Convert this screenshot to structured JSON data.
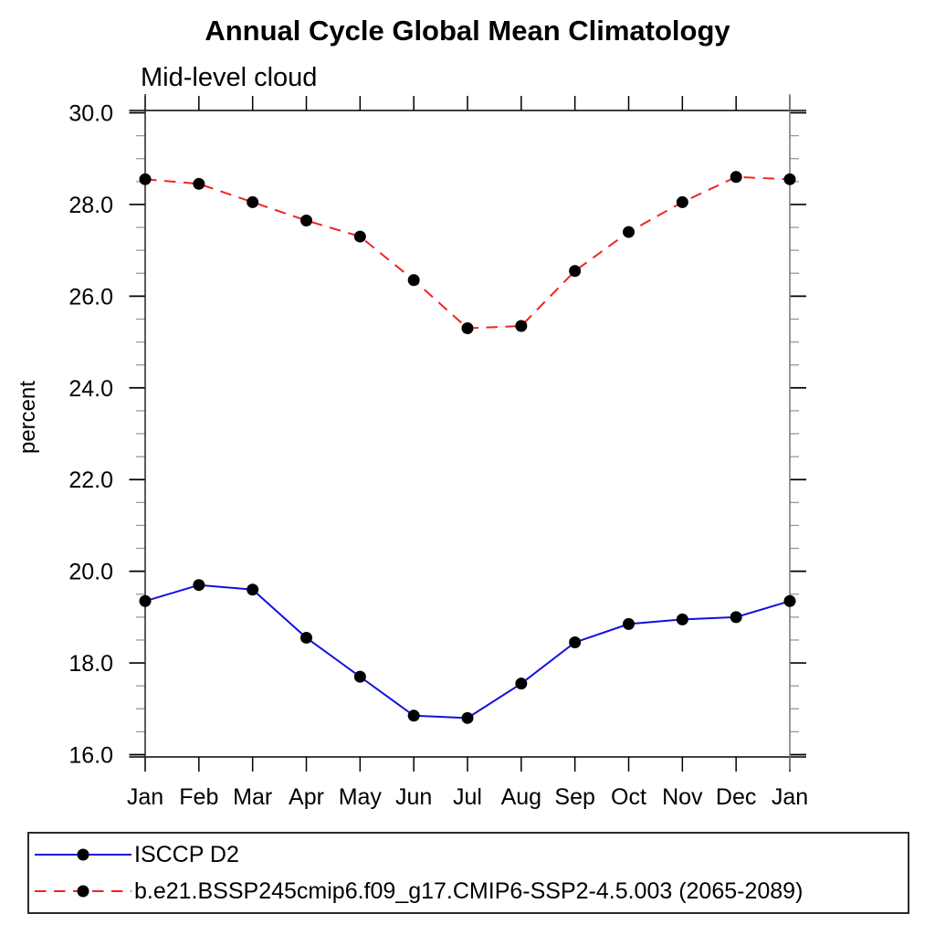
{
  "chart_data": {
    "type": "line",
    "title": "Annual Cycle Global Mean Climatology",
    "subtitle": "Mid-level cloud",
    "xlabel": "",
    "ylabel": "percent",
    "x_categories": [
      "Jan",
      "Feb",
      "Mar",
      "Apr",
      "May",
      "Jun",
      "Jul",
      "Aug",
      "Sep",
      "Oct",
      "Nov",
      "Dec",
      "Jan"
    ],
    "ylim": [
      15.95,
      30.05
    ],
    "ytick_major_values": [
      16,
      18,
      20,
      22,
      24,
      26,
      28,
      30
    ],
    "ytick_major_labels": [
      "16.0",
      "18.0",
      "20.0",
      "22.0",
      "24.0",
      "26.0",
      "28.0",
      "30.0"
    ],
    "ytick_minor_step": 0.5,
    "grid": false,
    "legend_position": "bottom-left-box",
    "series": [
      {
        "name": "ISCCP D2",
        "color": "#1111e0",
        "line_style": "solid",
        "marker": "filled-circle",
        "marker_color": "#000000",
        "values": [
          19.35,
          19.7,
          19.6,
          18.55,
          17.7,
          16.85,
          16.8,
          17.55,
          18.45,
          18.85,
          18.95,
          19.0,
          19.35
        ]
      },
      {
        "name": "b.e21.BSSP245cmip6.f09_g17.CMIP6-SSP2-4.5.003 (2065-2089)",
        "color": "#f32222",
        "line_style": "dashed",
        "marker": "filled-circle",
        "marker_color": "#000000",
        "values": [
          28.55,
          28.45,
          28.05,
          27.65,
          27.3,
          26.35,
          25.3,
          25.35,
          26.55,
          27.4,
          28.05,
          28.6,
          28.55
        ]
      }
    ]
  }
}
